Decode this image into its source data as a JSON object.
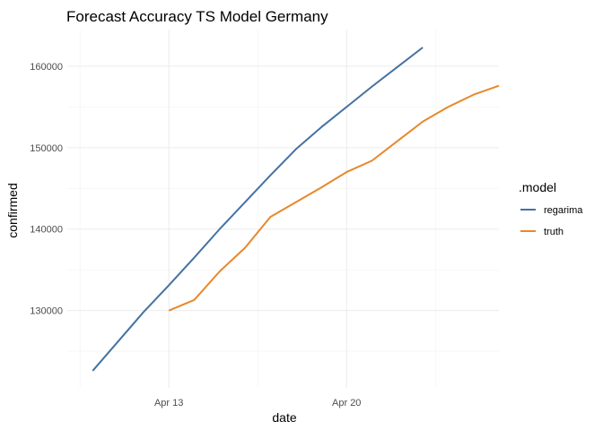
{
  "chart_data": {
    "type": "line",
    "title": "Forecast Accuracy TS Model Germany",
    "xlabel": "date",
    "ylabel": "confirmed",
    "x_ticks": [
      "Apr 13",
      "Apr 20"
    ],
    "y_ticks": [
      130000,
      140000,
      150000,
      160000
    ],
    "y_tick_labels": [
      "130000",
      "140000",
      "150000",
      "160000"
    ],
    "xlim": [
      "2020-04-09",
      "2020-04-26"
    ],
    "ylim": [
      120500,
      164500
    ],
    "grid": true,
    "legend": {
      "title": ".model",
      "position": "right"
    },
    "series": [
      {
        "name": "regarima",
        "color": "#4472A2",
        "x": [
          "2020-04-10",
          "2020-04-11",
          "2020-04-12",
          "2020-04-13",
          "2020-04-14",
          "2020-04-15",
          "2020-04-16",
          "2020-04-17",
          "2020-04-18",
          "2020-04-19",
          "2020-04-20",
          "2020-04-21",
          "2020-04-22",
          "2020-04-23"
        ],
        "values": [
          122600,
          126200,
          129800,
          133100,
          136500,
          140000,
          143300,
          146600,
          149800,
          152500,
          155000,
          157500,
          159900,
          162300
        ]
      },
      {
        "name": "truth",
        "color": "#E8882A",
        "x": [
          "2020-04-13",
          "2020-04-14",
          "2020-04-15",
          "2020-04-16",
          "2020-04-17",
          "2020-04-18",
          "2020-04-19",
          "2020-04-20",
          "2020-04-21",
          "2020-04-22",
          "2020-04-23",
          "2020-04-24",
          "2020-04-25",
          "2020-04-26"
        ],
        "values": [
          130000,
          131300,
          134800,
          137700,
          141500,
          143300,
          145100,
          147000,
          148400,
          150800,
          153200,
          155000,
          156500,
          157600
        ]
      }
    ]
  }
}
